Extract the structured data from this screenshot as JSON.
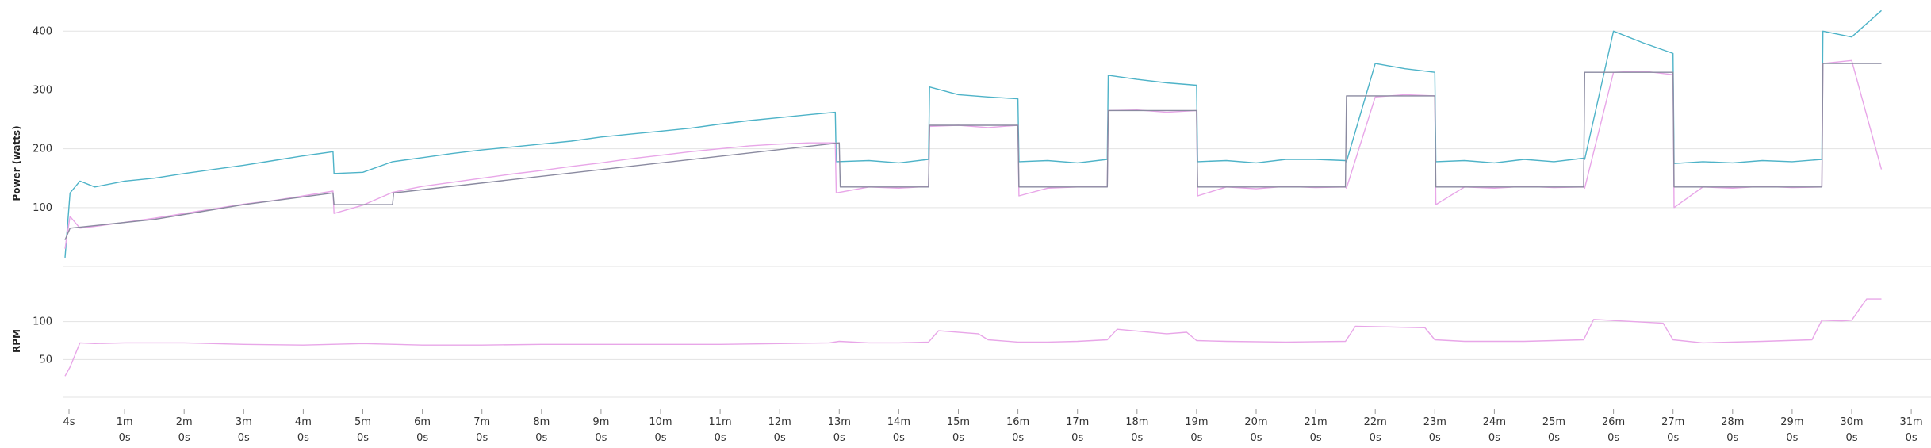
{
  "chart_data": [
    {
      "type": "line",
      "ylabel": "Power (watts)",
      "ylim": [
        0,
        430
      ],
      "yticks": [
        100,
        200,
        300,
        400
      ],
      "grid": true,
      "x_unit": "seconds",
      "series": [
        {
          "color": "#4eb3c8",
          "x": [
            0,
            5,
            15,
            30,
            60,
            90,
            120,
            150,
            180,
            210,
            240,
            270,
            271,
            300,
            330,
            360,
            390,
            420,
            450,
            480,
            510,
            540,
            570,
            600,
            630,
            660,
            690,
            720,
            750,
            776,
            777,
            810,
            840,
            870,
            871,
            900,
            930,
            960,
            961,
            990,
            1020,
            1050,
            1051,
            1080,
            1110,
            1140,
            1141,
            1170,
            1200,
            1230,
            1260,
            1290,
            1291,
            1320,
            1350,
            1380,
            1381,
            1410,
            1440,
            1470,
            1500,
            1530,
            1531,
            1560,
            1590,
            1620,
            1621,
            1650,
            1680,
            1710,
            1740,
            1770,
            1771,
            1800,
            1830
          ],
          "values": [
            15,
            125,
            145,
            135,
            145,
            150,
            158,
            165,
            172,
            180,
            188,
            195,
            158,
            160,
            178,
            185,
            192,
            198,
            203,
            208,
            213,
            220,
            225,
            230,
            235,
            242,
            248,
            253,
            258,
            262,
            178,
            180,
            176,
            182,
            305,
            292,
            288,
            285,
            178,
            180,
            176,
            182,
            325,
            318,
            312,
            308,
            178,
            180,
            176,
            182,
            182,
            180,
            178,
            345,
            336,
            330,
            178,
            180,
            176,
            182,
            178,
            184,
            182,
            400,
            380,
            362,
            175,
            178,
            176,
            180,
            178,
            182,
            400,
            390,
            435
          ]
        },
        {
          "color": "#e8a6e8",
          "x": [
            0,
            5,
            15,
            30,
            60,
            90,
            120,
            150,
            180,
            210,
            240,
            270,
            271,
            300,
            330,
            360,
            390,
            420,
            450,
            480,
            510,
            540,
            570,
            600,
            630,
            660,
            690,
            720,
            750,
            776,
            777,
            810,
            840,
            870,
            871,
            900,
            930,
            960,
            961,
            990,
            1020,
            1050,
            1051,
            1080,
            1110,
            1140,
            1141,
            1170,
            1200,
            1230,
            1260,
            1290,
            1291,
            1320,
            1350,
            1380,
            1381,
            1410,
            1440,
            1470,
            1500,
            1530,
            1531,
            1560,
            1590,
            1620,
            1621,
            1650,
            1680,
            1710,
            1740,
            1770,
            1771,
            1800,
            1830
          ],
          "values": [
            30,
            85,
            65,
            68,
            75,
            82,
            90,
            98,
            106,
            112,
            120,
            128,
            90,
            104,
            126,
            136,
            143,
            150,
            157,
            163,
            170,
            176,
            183,
            189,
            195,
            200,
            205,
            208,
            210,
            210,
            125,
            135,
            133,
            136,
            238,
            240,
            236,
            240,
            120,
            133,
            135,
            135,
            265,
            266,
            262,
            265,
            120,
            135,
            132,
            136,
            134,
            135,
            133,
            288,
            292,
            290,
            105,
            135,
            133,
            136,
            134,
            135,
            133,
            330,
            332,
            326,
            100,
            135,
            133,
            136,
            134,
            135,
            345,
            350,
            165
          ]
        },
        {
          "color": "#8a8aa0",
          "x": [
            0,
            5,
            90,
            180,
            270,
            271,
            330,
            331,
            780,
            781,
            870,
            871,
            960,
            961,
            1050,
            1051,
            1140,
            1141,
            1290,
            1291,
            1380,
            1381,
            1530,
            1531,
            1620,
            1621,
            1770,
            1771,
            1830
          ],
          "values": [
            45,
            65,
            80,
            105,
            125,
            105,
            105,
            125,
            210,
            135,
            135,
            240,
            240,
            135,
            135,
            265,
            265,
            135,
            135,
            290,
            290,
            135,
            135,
            330,
            330,
            135,
            135,
            345,
            345
          ]
        }
      ]
    },
    {
      "type": "line",
      "ylabel": "RPM",
      "ylim": [
        0,
        150
      ],
      "yticks": [
        50,
        100
      ],
      "grid": true,
      "x_unit": "seconds",
      "xticks": [
        [
          "4s",
          ""
        ],
        [
          "1m",
          "0s"
        ],
        [
          "2m",
          "0s"
        ],
        [
          "3m",
          "0s"
        ],
        [
          "4m",
          "0s"
        ],
        [
          "5m",
          "0s"
        ],
        [
          "6m",
          "0s"
        ],
        [
          "7m",
          "0s"
        ],
        [
          "8m",
          "0s"
        ],
        [
          "9m",
          "0s"
        ],
        [
          "10m",
          "0s"
        ],
        [
          "11m",
          "0s"
        ],
        [
          "12m",
          "0s"
        ],
        [
          "13m",
          "0s"
        ],
        [
          "14m",
          "0s"
        ],
        [
          "15m",
          "0s"
        ],
        [
          "16m",
          "0s"
        ],
        [
          "17m",
          "0s"
        ],
        [
          "18m",
          "0s"
        ],
        [
          "19m",
          "0s"
        ],
        [
          "20m",
          "0s"
        ],
        [
          "21m",
          "0s"
        ],
        [
          "22m",
          "0s"
        ],
        [
          "23m",
          "0s"
        ],
        [
          "24m",
          "0s"
        ],
        [
          "25m",
          "0s"
        ],
        [
          "26m",
          "0s"
        ],
        [
          "27m",
          "0s"
        ],
        [
          "28m",
          "0s"
        ],
        [
          "29m",
          "0s"
        ],
        [
          "30m",
          "0s"
        ],
        [
          "31m",
          "0s"
        ]
      ],
      "xtick_seconds": [
        4,
        60,
        120,
        180,
        240,
        300,
        360,
        420,
        480,
        540,
        600,
        660,
        720,
        780,
        840,
        900,
        960,
        1020,
        1080,
        1140,
        1200,
        1260,
        1320,
        1380,
        1440,
        1500,
        1560,
        1620,
        1680,
        1740,
        1800,
        1860
      ],
      "series": [
        {
          "color": "#e8a6e8",
          "x": [
            0,
            5,
            15,
            30,
            60,
            120,
            180,
            240,
            300,
            360,
            420,
            480,
            540,
            600,
            660,
            720,
            770,
            780,
            810,
            840,
            870,
            880,
            920,
            930,
            960,
            990,
            1020,
            1050,
            1060,
            1110,
            1130,
            1140,
            1170,
            1230,
            1290,
            1300,
            1370,
            1380,
            1410,
            1470,
            1530,
            1540,
            1610,
            1620,
            1650,
            1710,
            1760,
            1770,
            1790,
            1800,
            1815,
            1830
          ],
          "values": [
            28,
            40,
            72,
            71,
            72,
            72,
            70,
            69,
            71,
            69,
            69,
            70,
            70,
            70,
            70,
            71,
            72,
            74,
            72,
            72,
            73,
            88,
            84,
            76,
            73,
            73,
            74,
            76,
            90,
            84,
            86,
            75,
            74,
            73,
            74,
            94,
            92,
            76,
            74,
            74,
            76,
            103,
            98,
            76,
            72,
            74,
            76,
            102,
            101,
            102,
            130,
            130
          ]
        }
      ]
    }
  ]
}
